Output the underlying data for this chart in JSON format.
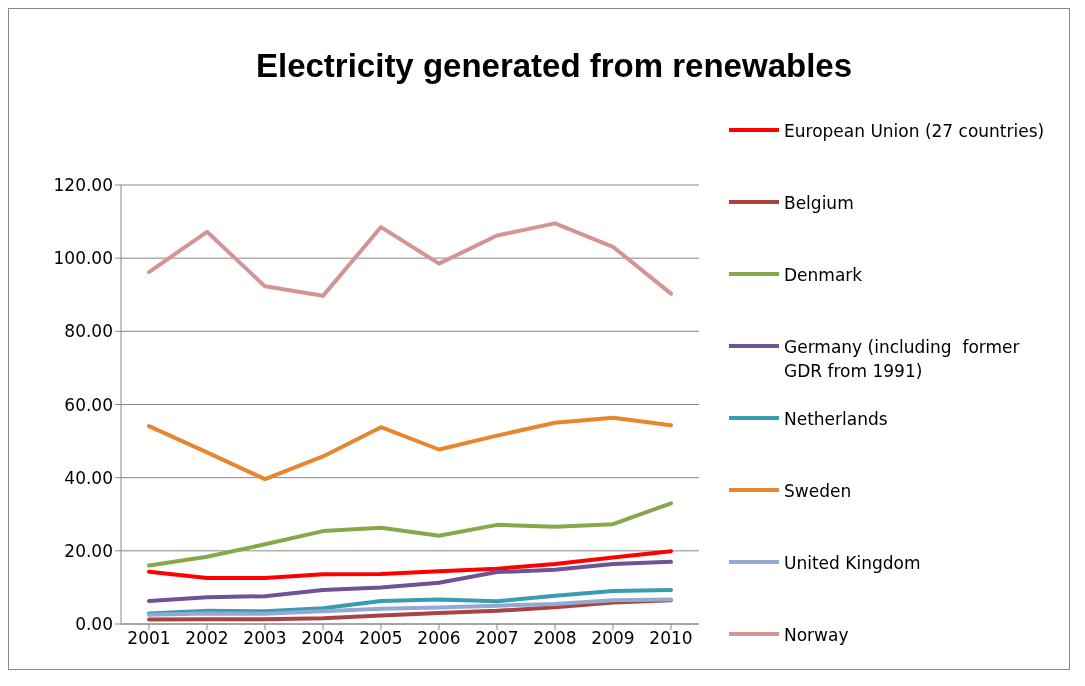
{
  "chart_data": {
    "type": "line",
    "title": "Electricity generated from renewables",
    "categories": [
      "2001",
      "2002",
      "2003",
      "2004",
      "2005",
      "2006",
      "2007",
      "2008",
      "2009",
      "2010"
    ],
    "series": [
      {
        "name": "European Union (27 countries)",
        "color": "#ff0000",
        "values": [
          14.3,
          12.6,
          12.6,
          13.6,
          13.7,
          14.4,
          15.1,
          16.4,
          18.2,
          19.9
        ]
      },
      {
        "name": "Belgium",
        "color": "#a84343",
        "values": [
          1.2,
          1.3,
          1.3,
          1.6,
          2.3,
          3.0,
          3.6,
          4.6,
          5.9,
          6.5
        ]
      },
      {
        "name": "Denmark",
        "color": "#86a84a",
        "values": [
          16.0,
          18.4,
          21.8,
          25.4,
          26.3,
          24.1,
          27.1,
          26.6,
          27.3,
          33.0
        ]
      },
      {
        "name": "Germany (including  former GDR from 1991)",
        "color": "#6f5196",
        "values": [
          6.3,
          7.3,
          7.6,
          9.3,
          10.0,
          11.3,
          14.2,
          14.8,
          16.4,
          17.0
        ]
      },
      {
        "name": "Netherlands",
        "color": "#3a9cb0",
        "values": [
          2.9,
          3.6,
          3.5,
          4.3,
          6.3,
          6.7,
          6.2,
          7.7,
          9.0,
          9.3
        ]
      },
      {
        "name": "Sweden",
        "color": "#e6862f",
        "values": [
          54.1,
          46.9,
          39.6,
          45.8,
          53.8,
          47.7,
          51.5,
          55.0,
          56.4,
          54.3
        ]
      },
      {
        "name": "United Kingdom",
        "color": "#93a9d1",
        "values": [
          2.5,
          2.9,
          2.8,
          3.5,
          4.2,
          4.5,
          5.0,
          5.5,
          6.5,
          6.7
        ]
      },
      {
        "name": "Norway",
        "color": "#d49495",
        "values": [
          96.2,
          107.2,
          92.3,
          89.7,
          108.5,
          98.5,
          106.2,
          109.5,
          103.1,
          90.3
        ]
      }
    ],
    "ylim": [
      0,
      120
    ],
    "yticks": [
      {
        "value": 0,
        "label": "0.00"
      },
      {
        "value": 20,
        "label": "20.00"
      },
      {
        "value": 40,
        "label": "40.00"
      },
      {
        "value": 60,
        "label": "60.00"
      },
      {
        "value": 80,
        "label": "80.00"
      },
      {
        "value": 100,
        "label": "100.00"
      },
      {
        "value": 120,
        "label": "120.00"
      }
    ],
    "grid": "y",
    "legend": "right",
    "marker": "none",
    "line_style": "solid"
  }
}
